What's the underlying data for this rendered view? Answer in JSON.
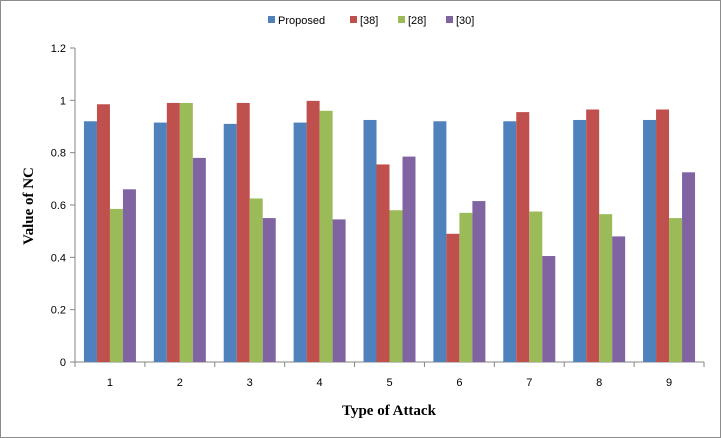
{
  "chart_data": {
    "type": "bar",
    "title": "",
    "xlabel": "Type of Attack",
    "ylabel": "Value of NC",
    "categories": [
      "1",
      "2",
      "3",
      "4",
      "5",
      "6",
      "7",
      "8",
      "9"
    ],
    "ylim": [
      0,
      1.2
    ],
    "yticks": [
      "0",
      "0.2",
      "0.4",
      "0.6",
      "0.8",
      "1",
      "1.2"
    ],
    "grid": false,
    "legend_position": "top-center",
    "series": [
      {
        "name": "Proposed",
        "color": "#4f81bd",
        "values": [
          0.92,
          0.915,
          0.91,
          0.915,
          0.925,
          0.92,
          0.92,
          0.925,
          0.925
        ]
      },
      {
        "name": "[38]",
        "color": "#c0504d",
        "values": [
          0.985,
          0.99,
          0.99,
          0.998,
          0.755,
          0.49,
          0.955,
          0.965,
          0.965
        ]
      },
      {
        "name": "[28]",
        "color": "#9bbb59",
        "values": [
          0.585,
          0.99,
          0.625,
          0.96,
          0.58,
          0.57,
          0.575,
          0.565,
          0.55
        ]
      },
      {
        "name": "[30]",
        "color": "#8064a2",
        "values": [
          0.66,
          0.78,
          0.55,
          0.545,
          0.785,
          0.615,
          0.405,
          0.48,
          0.725
        ]
      }
    ]
  }
}
